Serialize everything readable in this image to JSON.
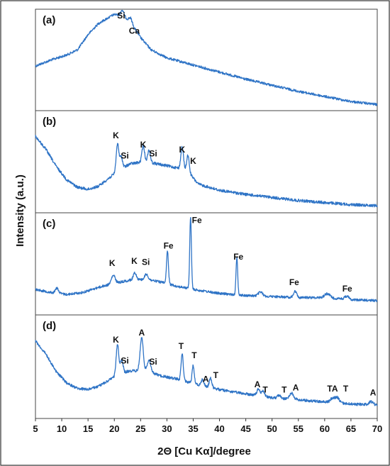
{
  "chart_data": {
    "type": "line",
    "xlabel": "2Θ [Cu Kα]/degree",
    "ylabel": "Intensity (a.u.)",
    "xlim": [
      5,
      70
    ],
    "x_ticks": [
      "5",
      "10",
      "15",
      "20",
      "25",
      "30",
      "35",
      "40",
      "45",
      "50",
      "55",
      "60",
      "65",
      "70"
    ],
    "color": "#2f74c6",
    "panels": [
      {
        "label": "(a)",
        "baseline": [
          [
            5,
            0.56
          ],
          [
            8,
            0.5
          ],
          [
            11,
            0.45
          ],
          [
            13,
            0.4
          ],
          [
            15,
            0.25
          ],
          [
            17,
            0.14
          ],
          [
            19,
            0.08
          ],
          [
            20,
            0.05
          ],
          [
            21,
            0.06
          ],
          [
            22,
            0.08
          ],
          [
            23,
            0.12
          ],
          [
            25,
            0.28
          ],
          [
            27,
            0.4
          ],
          [
            30,
            0.48
          ],
          [
            35,
            0.55
          ],
          [
            40,
            0.62
          ],
          [
            45,
            0.69
          ],
          [
            50,
            0.75
          ],
          [
            55,
            0.81
          ],
          [
            60,
            0.86
          ],
          [
            65,
            0.91
          ],
          [
            70,
            0.94
          ]
        ],
        "peaks": [
          [
            21.5,
            0.06,
            0.3
          ],
          [
            23.1,
            0.04,
            0.3
          ]
        ],
        "noise": 0.012,
        "annotations": [
          {
            "text": "Si",
            "x": 21.3,
            "y": 0.02
          },
          {
            "text": "Ca",
            "x": 23.8,
            "y": 0.17
          }
        ]
      },
      {
        "label": "(b)",
        "baseline": [
          [
            5,
            0.25
          ],
          [
            7,
            0.38
          ],
          [
            9,
            0.55
          ],
          [
            11,
            0.68
          ],
          [
            13,
            0.75
          ],
          [
            15,
            0.77
          ],
          [
            17,
            0.74
          ],
          [
            19,
            0.66
          ],
          [
            21,
            0.58
          ],
          [
            23,
            0.52
          ],
          [
            26,
            0.5
          ],
          [
            29,
            0.53
          ],
          [
            32,
            0.56
          ],
          [
            34,
            0.6
          ],
          [
            36,
            0.72
          ],
          [
            40,
            0.78
          ],
          [
            45,
            0.82
          ],
          [
            50,
            0.85
          ],
          [
            55,
            0.88
          ],
          [
            60,
            0.9
          ],
          [
            65,
            0.92
          ],
          [
            70,
            0.93
          ]
        ],
        "peaks": [
          [
            20.6,
            0.27,
            0.25
          ],
          [
            21.3,
            0.12,
            0.25
          ],
          [
            25.5,
            0.16,
            0.25
          ],
          [
            26.6,
            0.12,
            0.25
          ],
          [
            32.9,
            0.22,
            0.25
          ],
          [
            34.0,
            0.16,
            0.25
          ]
        ],
        "noise": 0.014,
        "annotations": [
          {
            "text": "K",
            "x": 20.3,
            "y": 0.2
          },
          {
            "text": "Si",
            "x": 22.0,
            "y": 0.4
          },
          {
            "text": "K",
            "x": 25.5,
            "y": 0.29
          },
          {
            "text": "Si",
            "x": 27.4,
            "y": 0.38
          },
          {
            "text": "K",
            "x": 32.9,
            "y": 0.34
          },
          {
            "text": "K",
            "x": 35.0,
            "y": 0.45
          }
        ]
      },
      {
        "label": "(c)",
        "baseline": [
          [
            5,
            0.75
          ],
          [
            8,
            0.78
          ],
          [
            11,
            0.8
          ],
          [
            14,
            0.78
          ],
          [
            17,
            0.73
          ],
          [
            20,
            0.69
          ],
          [
            23,
            0.66
          ],
          [
            26,
            0.65
          ],
          [
            29,
            0.68
          ],
          [
            32,
            0.72
          ],
          [
            35,
            0.75
          ],
          [
            40,
            0.79
          ],
          [
            45,
            0.81
          ],
          [
            50,
            0.82
          ],
          [
            55,
            0.83
          ],
          [
            60,
            0.83
          ],
          [
            65,
            0.85
          ],
          [
            70,
            0.86
          ]
        ],
        "peaks": [
          [
            9.1,
            0.05,
            0.3
          ],
          [
            19.8,
            0.08,
            0.35
          ],
          [
            23.9,
            0.07,
            0.3
          ],
          [
            26.1,
            0.05,
            0.3
          ],
          [
            30.1,
            0.32,
            0.18
          ],
          [
            34.5,
            0.7,
            0.16
          ],
          [
            43.3,
            0.36,
            0.16
          ],
          [
            47.8,
            0.04,
            0.4
          ],
          [
            54.4,
            0.06,
            0.3
          ],
          [
            60.5,
            0.04,
            0.5
          ],
          [
            64.2,
            0.03,
            0.4
          ]
        ],
        "noise": 0.012,
        "annotations": [
          {
            "text": "K",
            "x": 19.6,
            "y": 0.45
          },
          {
            "text": "K",
            "x": 23.8,
            "y": 0.43
          },
          {
            "text": "Si",
            "x": 26.0,
            "y": 0.44
          },
          {
            "text": "Fe",
            "x": 30.3,
            "y": 0.28
          },
          {
            "text": "Fe",
            "x": 35.7,
            "y": 0.03
          },
          {
            "text": "Fe",
            "x": 43.6,
            "y": 0.39
          },
          {
            "text": "Fe",
            "x": 54.2,
            "y": 0.64
          },
          {
            "text": "Fe",
            "x": 64.3,
            "y": 0.7
          }
        ]
      },
      {
        "label": "(d)",
        "baseline": [
          [
            5,
            0.25
          ],
          [
            7,
            0.38
          ],
          [
            9,
            0.55
          ],
          [
            11,
            0.66
          ],
          [
            13,
            0.71
          ],
          [
            15,
            0.72
          ],
          [
            17,
            0.69
          ],
          [
            19,
            0.63
          ],
          [
            21,
            0.57
          ],
          [
            23,
            0.54
          ],
          [
            26,
            0.54
          ],
          [
            29,
            0.59
          ],
          [
            32,
            0.62
          ],
          [
            35,
            0.66
          ],
          [
            38,
            0.7
          ],
          [
            42,
            0.74
          ],
          [
            46,
            0.77
          ],
          [
            50,
            0.8
          ],
          [
            55,
            0.82
          ],
          [
            60,
            0.84
          ],
          [
            65,
            0.86
          ],
          [
            70,
            0.87
          ]
        ],
        "peaks": [
          [
            20.6,
            0.3,
            0.25
          ],
          [
            21.4,
            0.13,
            0.25
          ],
          [
            25.2,
            0.32,
            0.3
          ],
          [
            26.6,
            0.12,
            0.3
          ],
          [
            32.9,
            0.26,
            0.2
          ],
          [
            35.0,
            0.17,
            0.2
          ],
          [
            36.8,
            0.06,
            0.25
          ],
          [
            38.3,
            0.09,
            0.25
          ],
          [
            47.4,
            0.06,
            0.3
          ],
          [
            48.3,
            0.05,
            0.3
          ],
          [
            51.3,
            0.03,
            0.3
          ],
          [
            53.7,
            0.06,
            0.4
          ],
          [
            61.5,
            0.04,
            0.4
          ],
          [
            62.4,
            0.05,
            0.4
          ],
          [
            68.8,
            0.03,
            0.4
          ]
        ],
        "noise": 0.013,
        "annotations": [
          {
            "text": "K",
            "x": 20.3,
            "y": 0.2
          },
          {
            "text": "Si",
            "x": 22.0,
            "y": 0.4
          },
          {
            "text": "A",
            "x": 25.2,
            "y": 0.13
          },
          {
            "text": "Si",
            "x": 27.4,
            "y": 0.41
          },
          {
            "text": "T",
            "x": 32.7,
            "y": 0.26
          },
          {
            "text": "T",
            "x": 35.2,
            "y": 0.35
          },
          {
            "text": "A",
            "x": 37.4,
            "y": 0.58
          },
          {
            "text": "T",
            "x": 39.3,
            "y": 0.54
          },
          {
            "text": "A",
            "x": 47.2,
            "y": 0.63
          },
          {
            "text": "T",
            "x": 48.7,
            "y": 0.68
          },
          {
            "text": "T",
            "x": 52.3,
            "y": 0.68
          },
          {
            "text": "A",
            "x": 54.5,
            "y": 0.66
          },
          {
            "text": "TA",
            "x": 61.5,
            "y": 0.67
          },
          {
            "text": "T",
            "x": 64.0,
            "y": 0.67
          },
          {
            "text": "A",
            "x": 69.2,
            "y": 0.71
          }
        ]
      }
    ]
  }
}
